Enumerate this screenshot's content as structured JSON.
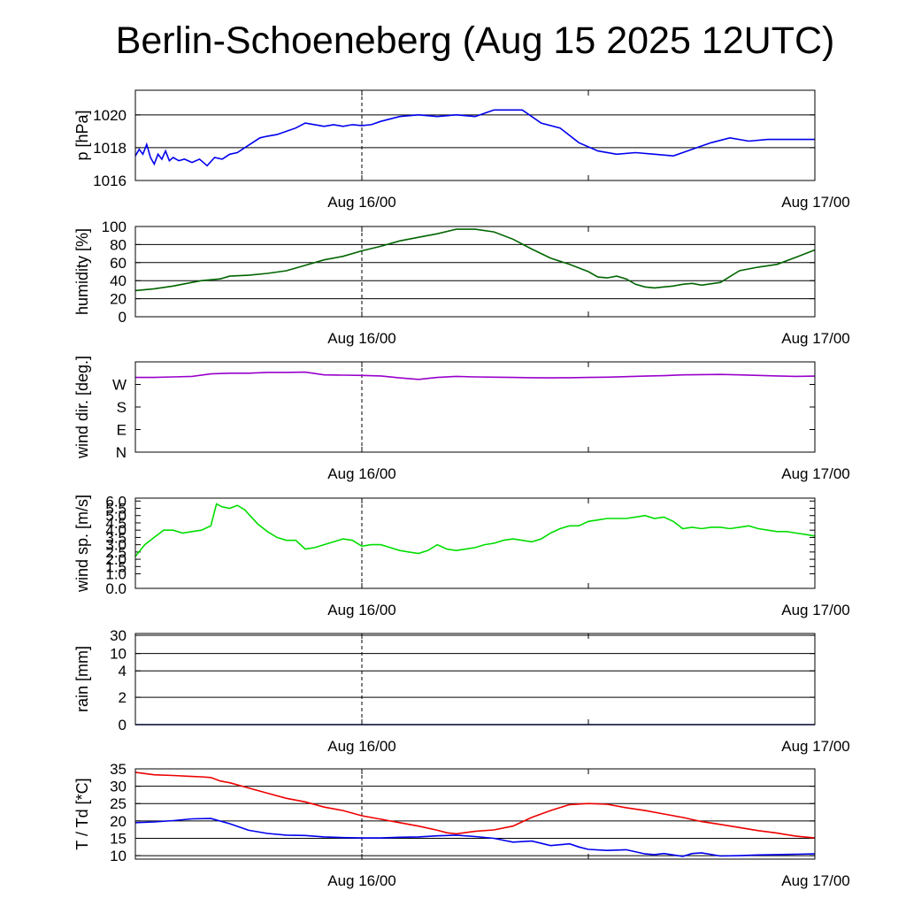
{
  "title": "Berlin-Schoeneberg (Aug 15 2025 12UTC)",
  "x_tick_labels": [
    "Aug 16/00",
    "Aug 17/00"
  ],
  "x_range_hours": [
    0,
    36
  ],
  "chart_data": [
    {
      "type": "line",
      "ylabel": "p [hPa]",
      "ylim": [
        1016,
        1021.5
      ],
      "yticks": [
        1016,
        1018,
        1020
      ],
      "ytick_labels": [
        "1016",
        "1018",
        "1020"
      ],
      "grid": true,
      "series": [
        {
          "color": "#0000ee",
          "x": [
            0,
            0.2,
            0.4,
            0.6,
            0.8,
            1.0,
            1.2,
            1.4,
            1.6,
            1.8,
            2.0,
            2.3,
            2.6,
            3.0,
            3.4,
            3.8,
            4.2,
            4.6,
            5.0,
            5.4,
            5.8,
            6.2,
            6.6,
            7.0,
            7.5,
            8.0,
            8.5,
            9.0,
            9.5,
            10.0,
            10.5,
            11.0,
            11.5,
            12.0,
            12.5,
            13.0,
            14.0,
            15.0,
            16.0,
            17.0,
            18.0,
            19.0,
            19.5,
            20.5,
            21.5,
            22.5,
            23.5,
            24.5,
            25.5,
            26.5,
            27.5,
            28.5,
            29.5,
            30.5,
            31.5,
            32.5,
            33.5,
            34.5,
            35.5,
            36.0
          ],
          "y": [
            1017.5,
            1017.9,
            1017.6,
            1018.2,
            1017.4,
            1017.0,
            1017.6,
            1017.3,
            1017.8,
            1017.2,
            1017.4,
            1017.2,
            1017.3,
            1017.1,
            1017.3,
            1016.9,
            1017.4,
            1017.3,
            1017.6,
            1017.7,
            1018.0,
            1018.3,
            1018.6,
            1018.7,
            1018.8,
            1019.0,
            1019.2,
            1019.5,
            1019.4,
            1019.3,
            1019.4,
            1019.3,
            1019.4,
            1019.35,
            1019.4,
            1019.6,
            1019.9,
            1020.0,
            1019.9,
            1020.0,
            1019.9,
            1020.3,
            1020.3,
            1020.3,
            1019.5,
            1019.2,
            1018.3,
            1017.8,
            1017.6,
            1017.7,
            1017.6,
            1017.5,
            1017.9,
            1018.3,
            1018.6,
            1018.4,
            1018.5,
            1018.5,
            1018.5,
            1018.5
          ]
        }
      ]
    },
    {
      "type": "line",
      "ylabel": "humidity [%]",
      "ylim": [
        0,
        100
      ],
      "yticks": [
        0,
        20,
        40,
        60,
        80,
        100
      ],
      "ytick_labels": [
        "0",
        "20",
        "40",
        "60",
        "80",
        "100"
      ],
      "grid": true,
      "series": [
        {
          "color": "#006400",
          "x": [
            0,
            1,
            2,
            3,
            3.5,
            4,
            4.5,
            5,
            6,
            7,
            8,
            9,
            10,
            11,
            12,
            13,
            14,
            15,
            16,
            17,
            18,
            19,
            20,
            21,
            22,
            23,
            24,
            24.5,
            25,
            25.5,
            26,
            26.5,
            27,
            27.5,
            28,
            28.5,
            29,
            29.5,
            30,
            31,
            32,
            33,
            34,
            35,
            36
          ],
          "y": [
            29,
            31,
            34,
            38,
            40,
            41,
            42,
            45,
            46,
            48,
            51,
            57,
            63,
            67,
            73,
            78,
            84,
            88,
            92,
            97,
            97,
            94,
            86,
            75,
            65,
            58,
            50,
            44,
            43,
            45,
            42,
            36,
            33,
            32,
            33,
            34,
            36,
            37,
            35,
            38,
            51,
            55,
            58,
            66,
            74
          ]
        }
      ]
    },
    {
      "type": "line",
      "ylabel": "wind dir. [deg.]",
      "ylim": [
        0,
        360
      ],
      "yticks": [
        0,
        90,
        180,
        270
      ],
      "ytick_labels": [
        "N",
        "E",
        "S",
        "W"
      ],
      "grid": false,
      "series": [
        {
          "color": "#9900cc",
          "x": [
            0,
            1,
            2,
            3,
            4,
            5,
            6,
            7,
            8,
            9,
            10,
            11,
            12,
            13,
            14,
            15,
            16,
            17,
            18,
            19,
            20,
            21,
            22,
            23,
            24,
            25,
            26,
            27,
            28,
            29,
            30,
            31,
            32,
            33,
            34,
            35,
            36
          ],
          "y": [
            298,
            298,
            300,
            302,
            312,
            315,
            315,
            318,
            318,
            319,
            308,
            307,
            306,
            304,
            296,
            290,
            298,
            302,
            300,
            299,
            298,
            297,
            296,
            297,
            298,
            299,
            301,
            303,
            305,
            308,
            309,
            310,
            308,
            306,
            304,
            302,
            303
          ]
        }
      ]
    },
    {
      "type": "line",
      "ylabel": "wind sp. [m/s]",
      "ylim": [
        0,
        6.2
      ],
      "yticks": [
        0,
        1,
        1.5,
        2,
        2.5,
        3,
        3.5,
        4,
        4.5,
        5,
        5.5,
        6
      ],
      "ytick_labels": [
        "0.0",
        "1.0",
        "1.5",
        "2.0",
        "2.5",
        "3.0",
        "3.5",
        "4.0",
        "4.5",
        "5.0",
        "5.5",
        "6.0"
      ],
      "grid": false,
      "series": [
        {
          "color": "#00dd00",
          "x": [
            0,
            0.5,
            1,
            1.5,
            2,
            2.5,
            3,
            3.5,
            4,
            4.3,
            4.6,
            5,
            5.4,
            5.8,
            6,
            6.5,
            7,
            7.5,
            8,
            8.5,
            9,
            9.5,
            10,
            10.5,
            11,
            11.5,
            12,
            12.5,
            13,
            13.5,
            14,
            14.5,
            15,
            15.5,
            16,
            16.5,
            17,
            17.5,
            18,
            18.5,
            19,
            19.5,
            20,
            20.5,
            21,
            21.5,
            22,
            22.5,
            23,
            23.5,
            24,
            24.5,
            25,
            25.5,
            26,
            26.5,
            27,
            27.5,
            28,
            28.5,
            29,
            29.5,
            30,
            30.5,
            31,
            31.5,
            32,
            32.5,
            33,
            33.5,
            34,
            34.5,
            35,
            35.5,
            36
          ],
          "y": [
            2.2,
            3.0,
            3.5,
            4.0,
            4.0,
            3.8,
            3.9,
            4.0,
            4.3,
            5.8,
            5.6,
            5.5,
            5.7,
            5.4,
            5.1,
            4.4,
            3.9,
            3.5,
            3.3,
            3.3,
            2.7,
            2.8,
            3.0,
            3.2,
            3.4,
            3.3,
            2.9,
            3.0,
            3.0,
            2.8,
            2.6,
            2.5,
            2.4,
            2.6,
            3.0,
            2.7,
            2.6,
            2.7,
            2.8,
            3.0,
            3.1,
            3.3,
            3.4,
            3.3,
            3.2,
            3.4,
            3.8,
            4.1,
            4.3,
            4.3,
            4.6,
            4.7,
            4.8,
            4.8,
            4.8,
            4.9,
            5.0,
            4.8,
            4.9,
            4.6,
            4.1,
            4.2,
            4.1,
            4.2,
            4.2,
            4.1,
            4.2,
            4.3,
            4.1,
            4.0,
            3.9,
            3.9,
            3.8,
            3.7,
            3.6
          ]
        }
      ]
    },
    {
      "type": "line",
      "ylabel": "rain [mm]",
      "ylim": [
        0,
        32
      ],
      "yticks": [
        0,
        2,
        4,
        10,
        30
      ],
      "ytick_labels": [
        "0",
        "2",
        "4",
        "10",
        "30"
      ],
      "grid": true,
      "series": [
        {
          "color": "#00008b",
          "x": [
            0,
            36
          ],
          "y": [
            0,
            0
          ]
        }
      ]
    },
    {
      "type": "line",
      "ylabel": "T / Td [*C]",
      "ylim": [
        9,
        35
      ],
      "yticks": [
        10,
        15,
        20,
        25,
        30,
        35
      ],
      "ytick_labels": [
        "10",
        "15",
        "20",
        "25",
        "30",
        "35"
      ],
      "grid": true,
      "series": [
        {
          "color": "#ee0000",
          "x": [
            0,
            1,
            2,
            3,
            3.5,
            4,
            4.5,
            5,
            6,
            7,
            8,
            9,
            10,
            11,
            12,
            13,
            14,
            15,
            16,
            16.5,
            17,
            18,
            19,
            20,
            21,
            22,
            23,
            24,
            25,
            26,
            27,
            28,
            29,
            30,
            31,
            32,
            33,
            34,
            35,
            36
          ],
          "y": [
            34,
            33.3,
            33.1,
            32.8,
            32.7,
            32.5,
            31.5,
            31,
            29.5,
            28,
            26.5,
            25.5,
            24,
            23,
            21.5,
            20.5,
            19.5,
            18.5,
            17.3,
            16.6,
            16.3,
            17,
            17.4,
            18.5,
            21,
            23,
            24.7,
            25,
            24.8,
            23.8,
            23,
            22,
            21,
            19.8,
            19,
            18.1,
            17.2,
            16.5,
            15.6,
            15.1
          ]
        },
        {
          "color": "#0000ee",
          "x": [
            0,
            1,
            2,
            3,
            4,
            5,
            6,
            7,
            8,
            9,
            10,
            11,
            12,
            13,
            14,
            15,
            16,
            17,
            18,
            19,
            20,
            21,
            22,
            23,
            23.5,
            24,
            25,
            26,
            27,
            27.5,
            28,
            29,
            29.5,
            30,
            31,
            32,
            33,
            34,
            35,
            36
          ],
          "y": [
            19.5,
            19.7,
            20.1,
            20.6,
            20.7,
            19.2,
            17.3,
            16.4,
            15.9,
            15.8,
            15.4,
            15.2,
            15.1,
            15.1,
            15.3,
            15.4,
            15.7,
            15.9,
            15.5,
            15,
            13.9,
            14.2,
            12.9,
            13.4,
            12.5,
            11.8,
            11.5,
            11.7,
            10.5,
            10.3,
            10.6,
            9.8,
            10.6,
            10.8,
            9.9,
            10,
            10.2,
            10.3,
            10.4,
            10.5
          ]
        }
      ]
    }
  ]
}
